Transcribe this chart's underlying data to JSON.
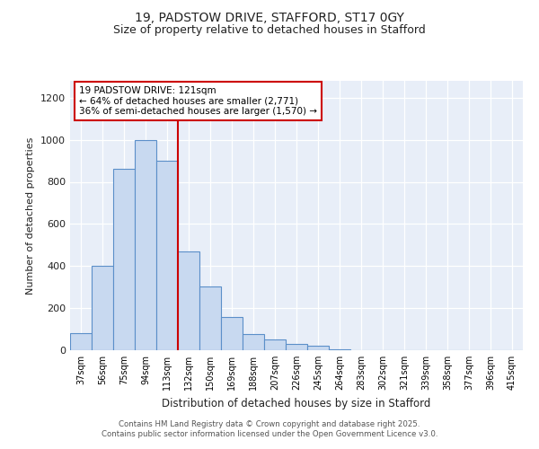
{
  "title_line1": "19, PADSTOW DRIVE, STAFFORD, ST17 0GY",
  "title_line2": "Size of property relative to detached houses in Stafford",
  "xlabel": "Distribution of detached houses by size in Stafford",
  "ylabel": "Number of detached properties",
  "categories": [
    "37sqm",
    "56sqm",
    "75sqm",
    "94sqm",
    "113sqm",
    "132sqm",
    "150sqm",
    "169sqm",
    "188sqm",
    "207sqm",
    "226sqm",
    "245sqm",
    "264sqm",
    "283sqm",
    "302sqm",
    "321sqm",
    "339sqm",
    "358sqm",
    "377sqm",
    "396sqm",
    "415sqm"
  ],
  "values": [
    80,
    400,
    860,
    1000,
    900,
    470,
    305,
    160,
    75,
    50,
    30,
    20,
    5,
    1,
    1,
    1,
    0,
    1,
    0,
    0,
    1
  ],
  "bar_color": "#c8d9f0",
  "bar_edge_color": "#5b8fc9",
  "vline_x": 4.5,
  "vline_color": "#cc0000",
  "annotation_title": "19 PADSTOW DRIVE: 121sqm",
  "annotation_line2": "← 64% of detached houses are smaller (2,771)",
  "annotation_line3": "36% of semi-detached houses are larger (1,570) →",
  "annotation_box_color": "#cc0000",
  "annotation_bg": "#ffffff",
  "ylim": [
    0,
    1280
  ],
  "yticks": [
    0,
    200,
    400,
    600,
    800,
    1000,
    1200
  ],
  "bg_color": "#e8eef8",
  "grid_color": "#ffffff",
  "footer_line1": "Contains HM Land Registry data © Crown copyright and database right 2025.",
  "footer_line2": "Contains public sector information licensed under the Open Government Licence v3.0."
}
